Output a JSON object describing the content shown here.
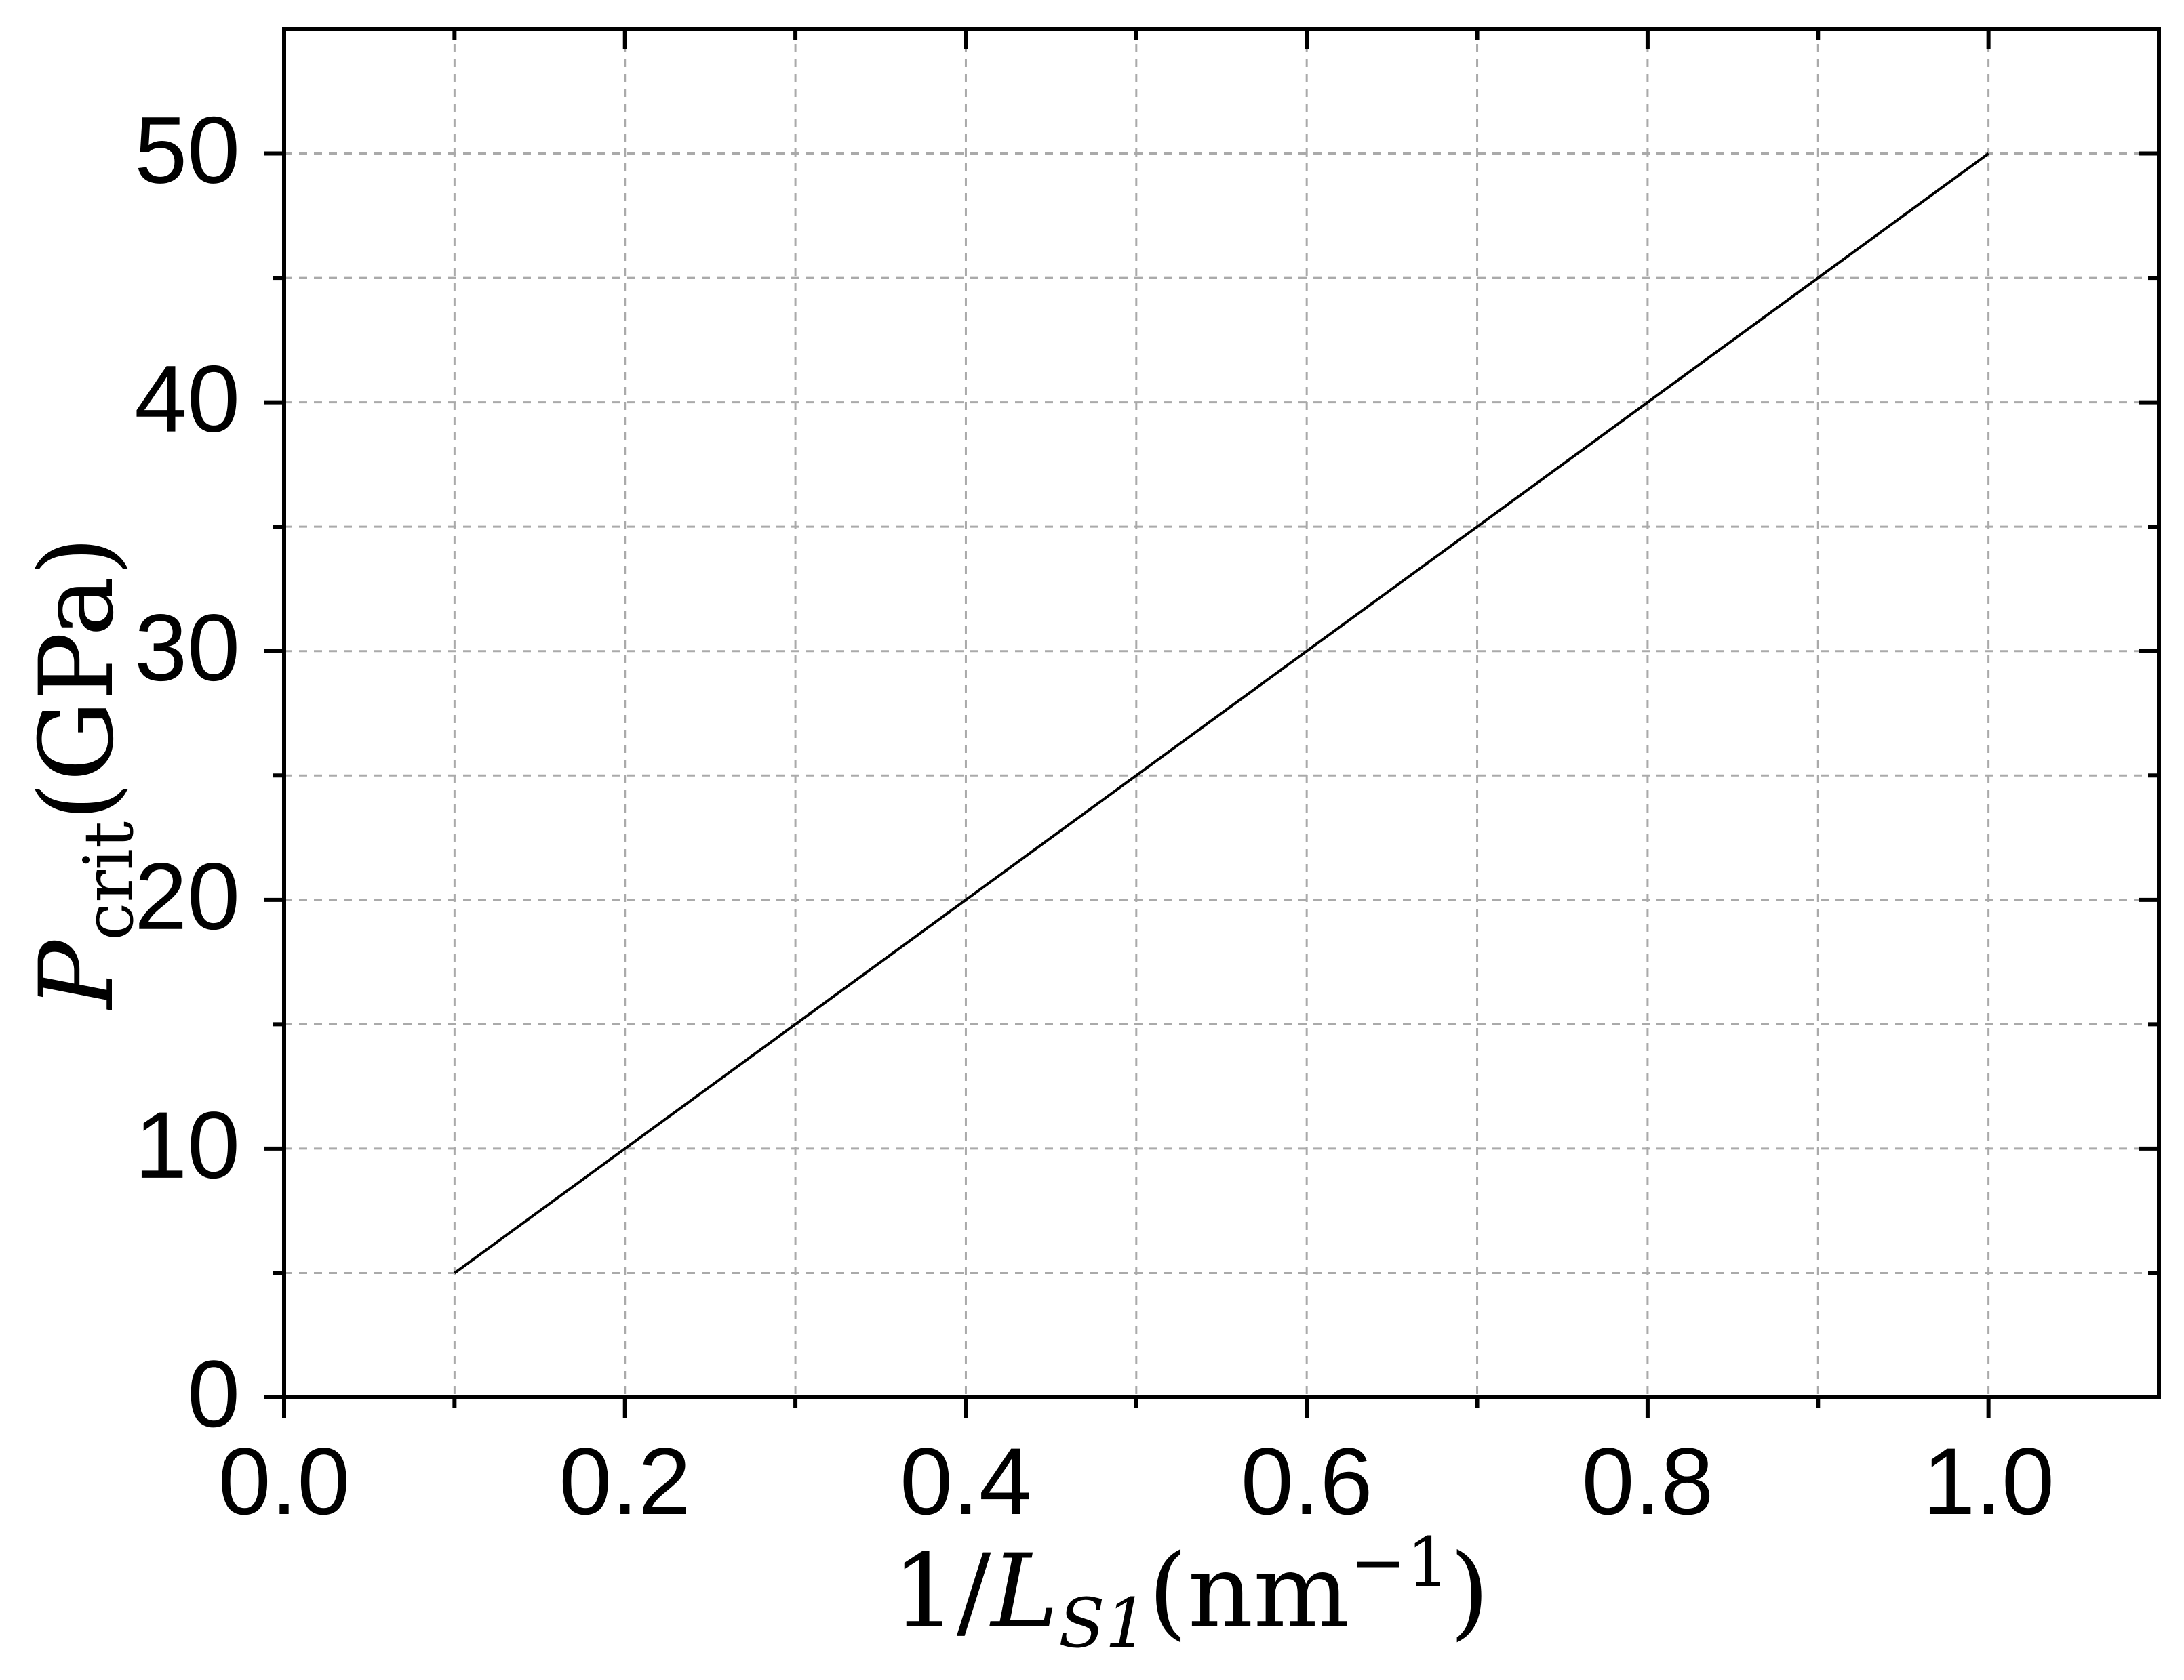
{
  "chart_data": {
    "type": "line",
    "xlabel": [
      "1/",
      "L",
      "S1",
      "(nm",
      "−1",
      ")"
    ],
    "ylabel": [
      "P",
      "crit",
      "(GPa)"
    ],
    "x": [
      0.1,
      0.2,
      0.3,
      0.4,
      0.5,
      0.6,
      0.7,
      0.8,
      0.9,
      1.0
    ],
    "series": [
      {
        "color": "#000000",
        "values": [
          5,
          10,
          15,
          20,
          25,
          30,
          35,
          40,
          45,
          50
        ]
      }
    ],
    "xlim": [
      0,
      1.1
    ],
    "ylim": [
      0,
      55
    ],
    "xticks": [
      {
        "value": 0,
        "label": "0.0"
      },
      0.2,
      0.4,
      0.6,
      0.8,
      {
        "value": 1,
        "label": "1.0"
      }
    ],
    "xminorticks": [
      0.1,
      0.3,
      0.5,
      0.7,
      0.9
    ],
    "yticks": [
      0,
      10,
      20,
      30,
      40,
      50
    ],
    "yminorticks": [
      5,
      15,
      25,
      35,
      45
    ],
    "grid": true
  }
}
